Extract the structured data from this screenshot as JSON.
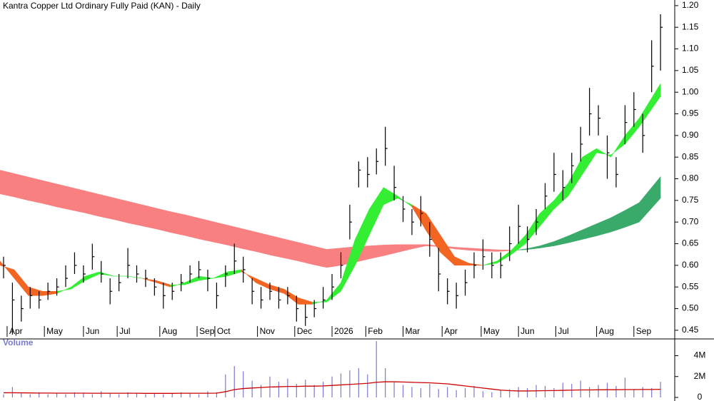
{
  "chart_data": {
    "type": "ohlc",
    "title": "Kantra Copper Ltd Ordinary Fully Paid (KAN) - Daily",
    "bar_color": "#000000",
    "xlim": [
      0,
      380
    ],
    "xticks": [
      {
        "value": 4,
        "label": "Apr"
      },
      {
        "value": 25,
        "label": "May"
      },
      {
        "value": 47,
        "label": "Jun"
      },
      {
        "value": 66,
        "label": "Jul"
      },
      {
        "value": 90,
        "label": "Aug"
      },
      {
        "value": 111,
        "label": "Sep"
      },
      {
        "value": 121,
        "label": "Oct"
      },
      {
        "value": 145,
        "label": "Nov"
      },
      {
        "value": 166,
        "label": "Dec"
      },
      {
        "value": 187,
        "label": "2026"
      },
      {
        "value": 206,
        "label": "Feb"
      },
      {
        "value": 227,
        "label": "Mar"
      },
      {
        "value": 249,
        "label": "Apr"
      },
      {
        "value": 271,
        "label": "May"
      },
      {
        "value": 292,
        "label": "Jun"
      },
      {
        "value": 313,
        "label": "Jul"
      },
      {
        "value": 336,
        "label": "Aug"
      },
      {
        "value": 357,
        "label": "Sep"
      }
    ],
    "ylim": [
      0.43,
      1.213
    ],
    "yticks": [
      0.45,
      {
        "value": 0.5,
        "label": "0.50"
      },
      0.55,
      {
        "value": 0.6,
        "label": "0.60"
      },
      0.65,
      {
        "value": 0.7,
        "label": "0.70"
      },
      0.75,
      {
        "value": 0.8,
        "label": "0.80"
      },
      0.85,
      {
        "value": 0.9,
        "label": "0.90"
      },
      0.95,
      {
        "value": 1.0,
        "label": "1.00"
      },
      1.05,
      {
        "value": 1.1,
        "label": "1.10"
      },
      1.15,
      {
        "value": 1.2,
        "label": "1.20"
      }
    ],
    "x": [
      2,
      7,
      12,
      17,
      22,
      27,
      32,
      37,
      42,
      47,
      52,
      57,
      62,
      67,
      72,
      77,
      82,
      87,
      92,
      97,
      102,
      107,
      112,
      117,
      122,
      127,
      132,
      137,
      142,
      147,
      152,
      157,
      162,
      167,
      172,
      177,
      182,
      187,
      192,
      197,
      202,
      207,
      212,
      217,
      222,
      227,
      232,
      237,
      242,
      247,
      252,
      257,
      262,
      267,
      272,
      277,
      282,
      287,
      292,
      297,
      302,
      307,
      312,
      317,
      322,
      327,
      332,
      337,
      342,
      347,
      352,
      357,
      362,
      367,
      372
    ],
    "high": [
      0.62,
      0.56,
      0.53,
      0.55,
      0.54,
      0.56,
      0.57,
      0.6,
      0.63,
      0.6,
      0.65,
      0.61,
      0.57,
      0.58,
      0.64,
      0.6,
      0.59,
      0.57,
      0.56,
      0.56,
      0.58,
      0.6,
      0.61,
      0.59,
      0.56,
      0.6,
      0.65,
      0.62,
      0.57,
      0.55,
      0.56,
      0.55,
      0.55,
      0.53,
      0.51,
      0.52,
      0.55,
      0.58,
      0.63,
      0.74,
      0.84,
      0.85,
      0.87,
      0.92,
      0.83,
      0.76,
      0.73,
      0.76,
      0.7,
      0.64,
      0.57,
      0.56,
      0.59,
      0.63,
      0.66,
      0.63,
      0.63,
      0.69,
      0.74,
      0.69,
      0.73,
      0.79,
      0.86,
      0.82,
      0.86,
      0.92,
      1.01,
      0.97,
      0.9,
      0.85,
      0.97,
      1.0,
      0.95,
      1.12,
      1.18
    ],
    "low": [
      0.57,
      0.44,
      0.47,
      0.5,
      0.5,
      0.52,
      0.53,
      0.55,
      0.58,
      0.56,
      0.59,
      0.56,
      0.51,
      0.54,
      0.57,
      0.56,
      0.55,
      0.53,
      0.5,
      0.52,
      0.54,
      0.56,
      0.57,
      0.54,
      0.5,
      0.55,
      0.58,
      0.56,
      0.51,
      0.5,
      0.52,
      0.5,
      0.51,
      0.47,
      0.46,
      0.48,
      0.5,
      0.52,
      0.57,
      0.66,
      0.78,
      0.78,
      0.81,
      0.83,
      0.75,
      0.7,
      0.67,
      0.69,
      0.62,
      0.54,
      0.51,
      0.5,
      0.53,
      0.57,
      0.59,
      0.57,
      0.57,
      0.61,
      0.65,
      0.63,
      0.67,
      0.73,
      0.77,
      0.75,
      0.79,
      0.84,
      0.9,
      0.9,
      0.8,
      0.78,
      0.88,
      0.92,
      0.86,
      1.0,
      1.05
    ],
    "close": [
      0.6,
      0.52,
      0.5,
      0.53,
      0.52,
      0.54,
      0.55,
      0.57,
      0.6,
      0.58,
      0.62,
      0.58,
      0.54,
      0.56,
      0.6,
      0.58,
      0.57,
      0.55,
      0.53,
      0.54,
      0.56,
      0.58,
      0.59,
      0.57,
      0.53,
      0.58,
      0.61,
      0.59,
      0.54,
      0.52,
      0.54,
      0.52,
      0.53,
      0.5,
      0.48,
      0.5,
      0.52,
      0.55,
      0.6,
      0.7,
      0.82,
      0.81,
      0.84,
      0.87,
      0.78,
      0.73,
      0.7,
      0.72,
      0.66,
      0.58,
      0.54,
      0.53,
      0.56,
      0.6,
      0.62,
      0.6,
      0.6,
      0.65,
      0.69,
      0.66,
      0.7,
      0.76,
      0.81,
      0.78,
      0.83,
      0.88,
      0.95,
      0.94,
      0.86,
      0.81,
      0.93,
      0.96,
      0.9,
      1.06,
      1.15
    ],
    "ribbons": [
      {
        "up_color": "#3aaa6a",
        "down_color": "#f88080",
        "x": [
          0,
          8,
          16,
          24,
          32,
          40,
          48,
          56,
          64,
          72,
          80,
          88,
          96,
          104,
          112,
          120,
          128,
          136,
          144,
          152,
          160,
          168,
          176,
          184,
          192,
          200,
          208,
          216,
          224,
          232,
          240,
          248,
          256,
          264,
          272,
          280,
          288,
          296,
          304,
          312,
          320,
          328,
          336,
          344,
          352,
          360,
          372
        ],
        "fast": [
          0.765,
          0.758,
          0.75,
          0.743,
          0.735,
          0.728,
          0.721,
          0.713,
          0.706,
          0.698,
          0.691,
          0.684,
          0.676,
          0.669,
          0.661,
          0.654,
          0.647,
          0.639,
          0.632,
          0.624,
          0.617,
          0.61,
          0.602,
          0.595,
          0.6,
          0.607,
          0.615,
          0.622,
          0.63,
          0.638,
          0.645,
          0.643,
          0.638,
          0.635,
          0.633,
          0.632,
          0.634,
          0.638,
          0.645,
          0.655,
          0.668,
          0.682,
          0.696,
          0.71,
          0.727,
          0.745,
          0.805
        ],
        "slow": [
          0.82,
          0.812,
          0.804,
          0.796,
          0.788,
          0.78,
          0.772,
          0.764,
          0.756,
          0.748,
          0.74,
          0.732,
          0.724,
          0.717,
          0.709,
          0.701,
          0.693,
          0.685,
          0.677,
          0.669,
          0.661,
          0.653,
          0.645,
          0.637,
          0.64,
          0.643,
          0.645,
          0.647,
          0.648,
          0.648,
          0.648,
          0.645,
          0.642,
          0.64,
          0.638,
          0.636,
          0.635,
          0.636,
          0.64,
          0.645,
          0.652,
          0.66,
          0.668,
          0.677,
          0.688,
          0.7,
          0.755
        ]
      },
      {
        "up_color": "#33ee33",
        "down_color": "#f26522",
        "x": [
          0,
          8,
          16,
          24,
          32,
          40,
          48,
          56,
          64,
          72,
          80,
          88,
          96,
          104,
          112,
          120,
          128,
          136,
          144,
          152,
          160,
          168,
          176,
          184,
          192,
          200,
          208,
          216,
          224,
          232,
          240,
          248,
          256,
          264,
          272,
          280,
          288,
          296,
          304,
          312,
          320,
          328,
          336,
          344,
          352,
          360,
          372
        ],
        "fast": [
          0.61,
          0.57,
          0.53,
          0.53,
          0.535,
          0.55,
          0.575,
          0.585,
          0.575,
          0.575,
          0.57,
          0.56,
          0.55,
          0.56,
          0.575,
          0.57,
          0.585,
          0.59,
          0.56,
          0.545,
          0.535,
          0.51,
          0.51,
          0.52,
          0.56,
          0.66,
          0.73,
          0.78,
          0.76,
          0.735,
          0.68,
          0.63,
          0.6,
          0.6,
          0.6,
          0.61,
          0.635,
          0.67,
          0.72,
          0.75,
          0.79,
          0.85,
          0.87,
          0.85,
          0.9,
          0.94,
          1.02
        ],
        "slow": [
          0.6,
          0.59,
          0.55,
          0.54,
          0.54,
          0.545,
          0.565,
          0.58,
          0.575,
          0.575,
          0.57,
          0.565,
          0.555,
          0.555,
          0.565,
          0.57,
          0.575,
          0.585,
          0.57,
          0.555,
          0.545,
          0.525,
          0.515,
          0.515,
          0.54,
          0.6,
          0.67,
          0.74,
          0.755,
          0.74,
          0.72,
          0.67,
          0.62,
          0.605,
          0.6,
          0.605,
          0.625,
          0.65,
          0.69,
          0.73,
          0.76,
          0.81,
          0.86,
          0.855,
          0.88,
          0.92,
          0.99
        ]
      }
    ],
    "volume": {
      "label": "Volume",
      "color": "#7b7bd0",
      "ma_color": "#cc0000",
      "ylim": [
        0,
        5400000
      ],
      "yticks": [
        0,
        {
          "value": 2000000,
          "label": "2M"
        },
        {
          "value": 4000000,
          "label": "4M"
        }
      ],
      "values": [
        300000,
        1000000,
        400000,
        300000,
        500000,
        300000,
        400000,
        300000,
        500000,
        400000,
        300000,
        600000,
        400000,
        300000,
        500000,
        400000,
        300000,
        400000,
        300000,
        400000,
        500000,
        400000,
        300000,
        600000,
        500000,
        2200000,
        3000000,
        2500000,
        1600000,
        1200000,
        2000000,
        1500000,
        1800000,
        1300000,
        1700000,
        1200000,
        1500000,
        2000000,
        2300000,
        2600000,
        2800000,
        2200000,
        5400000,
        2800000,
        1500000,
        1200000,
        1000000,
        900000,
        1300000,
        800000,
        1000000,
        700000,
        900000,
        1100000,
        600000,
        500000,
        700000,
        800000,
        1000000,
        900000,
        1200000,
        1100000,
        900000,
        1400000,
        1300000,
        1600000,
        1000000,
        1200000,
        1400000,
        1100000,
        1900000,
        800000,
        1000000,
        900000,
        1500000
      ],
      "ma": [
        450000,
        450000,
        440000,
        430000,
        420000,
        420000,
        410000,
        410000,
        410000,
        410000,
        400000,
        400000,
        400000,
        400000,
        400000,
        400000,
        390000,
        390000,
        390000,
        390000,
        400000,
        400000,
        400000,
        400000,
        410000,
        550000,
        750000,
        850000,
        900000,
        950000,
        1000000,
        1020000,
        1050000,
        1050000,
        1080000,
        1080000,
        1100000,
        1150000,
        1200000,
        1250000,
        1300000,
        1350000,
        1450000,
        1500000,
        1500000,
        1480000,
        1450000,
        1420000,
        1400000,
        1350000,
        1300000,
        1200000,
        1100000,
        1000000,
        900000,
        800000,
        700000,
        650000,
        620000,
        620000,
        630000,
        650000,
        660000,
        680000,
        700000,
        720000,
        720000,
        730000,
        740000,
        740000,
        750000,
        750000,
        760000,
        760000,
        780000
      ]
    }
  }
}
